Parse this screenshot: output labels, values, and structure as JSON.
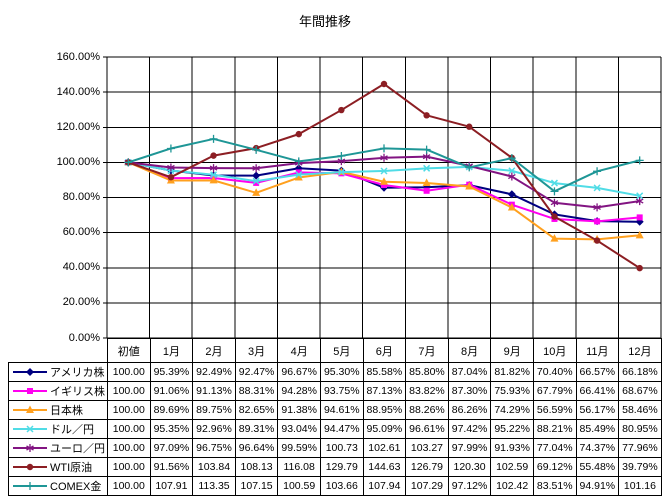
{
  "chart": {
    "background": "#FFFFFF",
    "grid_color": "#000000",
    "axis_color": "#000000"
  },
  "chart_data": {
    "type": "line",
    "title": "年間推移",
    "categories": [
      "初値",
      "1月",
      "2月",
      "3月",
      "4月",
      "5月",
      "6月",
      "7月",
      "8月",
      "9月",
      "10月",
      "11月",
      "12月"
    ],
    "ylim": [
      0,
      160
    ],
    "ytick_step": 20,
    "ytick_labels": [
      "160.00%",
      "140.00%",
      "120.00%",
      "100.00%",
      "80.00%",
      "60.00%",
      "40.00%",
      "20.00%",
      "0.00%"
    ],
    "grid": true,
    "legend_position": "data-table-left",
    "series": [
      {
        "name": "アメリカ株",
        "color": "#000080",
        "marker": "diamond",
        "values": [
          100.0,
          95.39,
          92.49,
          92.47,
          96.67,
          95.3,
          85.58,
          85.8,
          87.04,
          81.82,
          70.4,
          66.57,
          66.18
        ],
        "display": [
          "100.00",
          "95.39%",
          "92.49%",
          "92.47%",
          "96.67%",
          "95.30%",
          "85.58%",
          "85.80%",
          "87.04%",
          "81.82%",
          "70.40%",
          "66.57%",
          "66.18%"
        ]
      },
      {
        "name": "イギリス株",
        "color": "#FF00F0",
        "marker": "square",
        "values": [
          100.0,
          91.06,
          91.13,
          88.31,
          94.28,
          93.75,
          87.13,
          83.82,
          87.3,
          75.93,
          67.79,
          66.41,
          68.67
        ],
        "display": [
          "100.00",
          "91.06%",
          "91.13%",
          "88.31%",
          "94.28%",
          "93.75%",
          "87.13%",
          "83.82%",
          "87.30%",
          "75.93%",
          "67.79%",
          "66.41%",
          "68.67%"
        ]
      },
      {
        "name": "日本株",
        "color": "#FFA01E",
        "marker": "triangle",
        "values": [
          100.0,
          89.69,
          89.75,
          82.65,
          91.38,
          94.61,
          88.95,
          88.26,
          86.26,
          74.29,
          56.59,
          56.17,
          58.46
        ],
        "display": [
          "100.00",
          "89.69%",
          "89.75%",
          "82.65%",
          "91.38%",
          "94.61%",
          "88.95%",
          "88.26%",
          "86.26%",
          "74.29%",
          "56.59%",
          "56.17%",
          "58.46%"
        ]
      },
      {
        "name": "ドル／円",
        "color": "#50DCE6",
        "marker": "x",
        "values": [
          100.0,
          95.35,
          92.96,
          89.31,
          93.04,
          94.47,
          95.09,
          96.61,
          97.42,
          95.22,
          88.21,
          85.49,
          80.95
        ],
        "display": [
          "100.00",
          "95.35%",
          "92.96%",
          "89.31%",
          "93.04%",
          "94.47%",
          "95.09%",
          "96.61%",
          "97.42%",
          "95.22%",
          "88.21%",
          "85.49%",
          "80.95%"
        ]
      },
      {
        "name": "ユーロ／円",
        "color": "#821482",
        "marker": "asterisk",
        "values": [
          100.0,
          97.09,
          96.75,
          96.64,
          99.59,
          100.73,
          102.61,
          103.27,
          97.99,
          91.93,
          77.04,
          74.37,
          77.96
        ],
        "display": [
          "100.00",
          "97.09%",
          "96.75%",
          "96.64%",
          "99.59%",
          "100.73",
          "102.61",
          "103.27",
          "97.99%",
          "91.93%",
          "77.04%",
          "74.37%",
          "77.96%"
        ]
      },
      {
        "name": "WTI原油",
        "color": "#8C1E23",
        "marker": "circle",
        "values": [
          100.0,
          91.56,
          103.84,
          108.13,
          116.08,
          129.79,
          144.63,
          126.79,
          120.3,
          102.59,
          69.12,
          55.48,
          39.79
        ],
        "display": [
          "100.00",
          "91.56%",
          "103.84",
          "108.13",
          "116.08",
          "129.79",
          "144.63",
          "126.79",
          "120.30",
          "102.59",
          "69.12%",
          "55.48%",
          "39.79%"
        ]
      },
      {
        "name": "COMEX金",
        "color": "#1E9696",
        "marker": "plus",
        "values": [
          100.0,
          107.91,
          113.35,
          107.15,
          100.59,
          103.66,
          107.94,
          107.29,
          97.12,
          102.42,
          83.51,
          94.91,
          101.16
        ],
        "display": [
          "100.00",
          "107.91",
          "113.35",
          "107.15",
          "100.59",
          "103.66",
          "107.94",
          "107.29",
          "97.12%",
          "102.42",
          "83.51%",
          "94.91%",
          "101.16"
        ]
      }
    ]
  }
}
